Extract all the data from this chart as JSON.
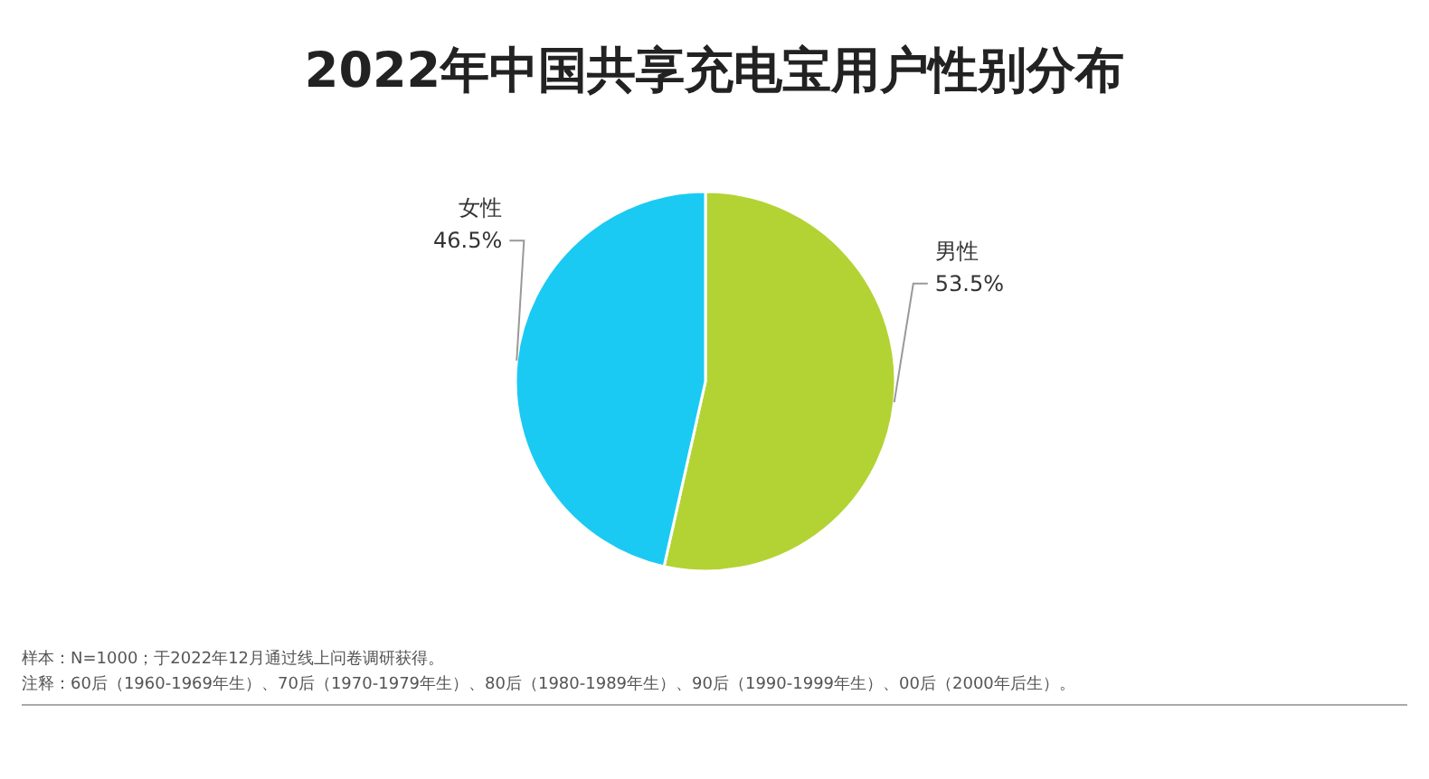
{
  "chart_data": {
    "type": "pie",
    "title": "2022年中国共享充电宝用户性别分布",
    "categories": [
      "男性",
      "女性"
    ],
    "values": [
      53.5,
      46.5
    ],
    "colors": [
      "#b3d334",
      "#1bcaf2"
    ],
    "value_labels": [
      "53.5%",
      "46.5%"
    ],
    "annotations": [
      "样本：N=1000；于2022年12月通过线上问卷调研获得。",
      "注释：60后（1960-1969年生）、70后（1970-1979年生）、80后（1980-1989年生）、90后（1990-1999年生）、00后（2000年后生）。"
    ]
  }
}
